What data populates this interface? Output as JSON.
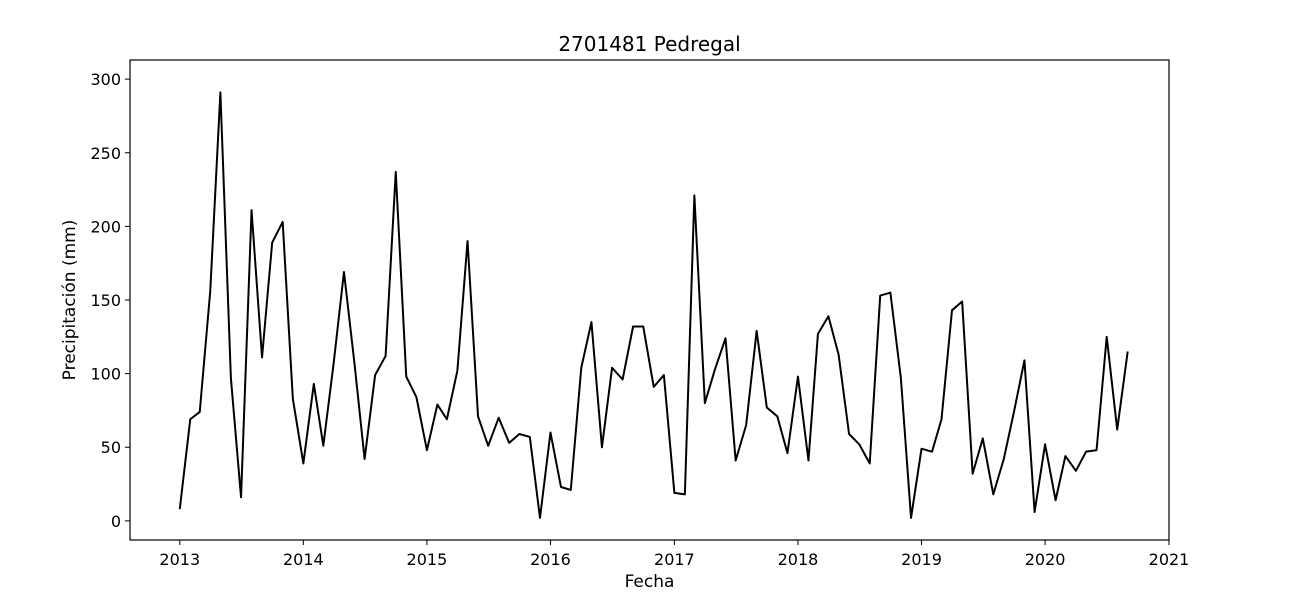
{
  "chart_data": {
    "type": "line",
    "title": "2701481 Pedregal",
    "xlabel": "Fecha",
    "ylabel": "Precipitación (mm)",
    "xlim": [
      "2012-08-07",
      "2021-01-01"
    ],
    "ylim": [
      -13,
      313
    ],
    "xticks": [
      {
        "date": "2013-01-01",
        "label": "2013"
      },
      {
        "date": "2014-01-01",
        "label": "2014"
      },
      {
        "date": "2015-01-01",
        "label": "2015"
      },
      {
        "date": "2016-01-01",
        "label": "2016"
      },
      {
        "date": "2017-01-01",
        "label": "2017"
      },
      {
        "date": "2018-01-01",
        "label": "2018"
      },
      {
        "date": "2019-01-01",
        "label": "2019"
      },
      {
        "date": "2020-01-01",
        "label": "2020"
      },
      {
        "date": "2021-01-01",
        "label": "2021"
      }
    ],
    "yticks": [
      0,
      50,
      100,
      150,
      200,
      250,
      300
    ],
    "grid": false,
    "line_color": "#000000",
    "series": [
      {
        "x": [
          "2013-01-01",
          "2013-02-01",
          "2013-03-01",
          "2013-04-01",
          "2013-05-01",
          "2013-06-01",
          "2013-07-01",
          "2013-08-01",
          "2013-09-01",
          "2013-10-01",
          "2013-11-01",
          "2013-12-01",
          "2014-01-01",
          "2014-02-01",
          "2014-03-01",
          "2014-04-01",
          "2014-05-01",
          "2014-06-01",
          "2014-07-01",
          "2014-08-01",
          "2014-09-01",
          "2014-10-01",
          "2014-11-01",
          "2014-12-01",
          "2015-01-01",
          "2015-02-01",
          "2015-03-01",
          "2015-04-01",
          "2015-05-01",
          "2015-06-01",
          "2015-07-01",
          "2015-08-01",
          "2015-09-01",
          "2015-10-01",
          "2015-11-01",
          "2015-12-01",
          "2016-01-01",
          "2016-02-01",
          "2016-03-01",
          "2016-04-01",
          "2016-05-01",
          "2016-06-01",
          "2016-07-01",
          "2016-08-01",
          "2016-09-01",
          "2016-10-01",
          "2016-11-01",
          "2016-12-01",
          "2017-01-01",
          "2017-02-01",
          "2017-03-01",
          "2017-04-01",
          "2017-05-01",
          "2017-06-01",
          "2017-07-01",
          "2017-08-01",
          "2017-09-01",
          "2017-10-01",
          "2017-11-01",
          "2017-12-01",
          "2018-01-01",
          "2018-02-01",
          "2018-03-01",
          "2018-04-01",
          "2018-05-01",
          "2018-06-01",
          "2018-07-01",
          "2018-08-01",
          "2018-09-01",
          "2018-10-01",
          "2018-11-01",
          "2018-12-01",
          "2019-01-01",
          "2019-02-01",
          "2019-03-01",
          "2019-04-01",
          "2019-05-01",
          "2019-06-01",
          "2019-07-01",
          "2019-08-01",
          "2019-09-01",
          "2019-10-01",
          "2019-11-01",
          "2019-12-01",
          "2020-01-01",
          "2020-02-01",
          "2020-03-01",
          "2020-04-01",
          "2020-05-01",
          "2020-06-01",
          "2020-07-01",
          "2020-08-01",
          "2020-09-01"
        ],
        "y": [
          8,
          69,
          74,
          156,
          291,
          97,
          16,
          211,
          111,
          189,
          203,
          83,
          39,
          93,
          51,
          108,
          169,
          107,
          42,
          99,
          112,
          237,
          98,
          84,
          48,
          79,
          69,
          102,
          190,
          71,
          51,
          70,
          53,
          59,
          57,
          2,
          60,
          23,
          21,
          104,
          135,
          50,
          104,
          96,
          132,
          132,
          91,
          99,
          19,
          18,
          221,
          80,
          103,
          124,
          41,
          65,
          129,
          77,
          71,
          46,
          98,
          41,
          127,
          139,
          113,
          59,
          52,
          39,
          153,
          155,
          97,
          2,
          49,
          47,
          69,
          143,
          149,
          32,
          56,
          18,
          42,
          74,
          109,
          6,
          52,
          14,
          44,
          34,
          47,
          48,
          125,
          62,
          115
        ]
      }
    ]
  }
}
